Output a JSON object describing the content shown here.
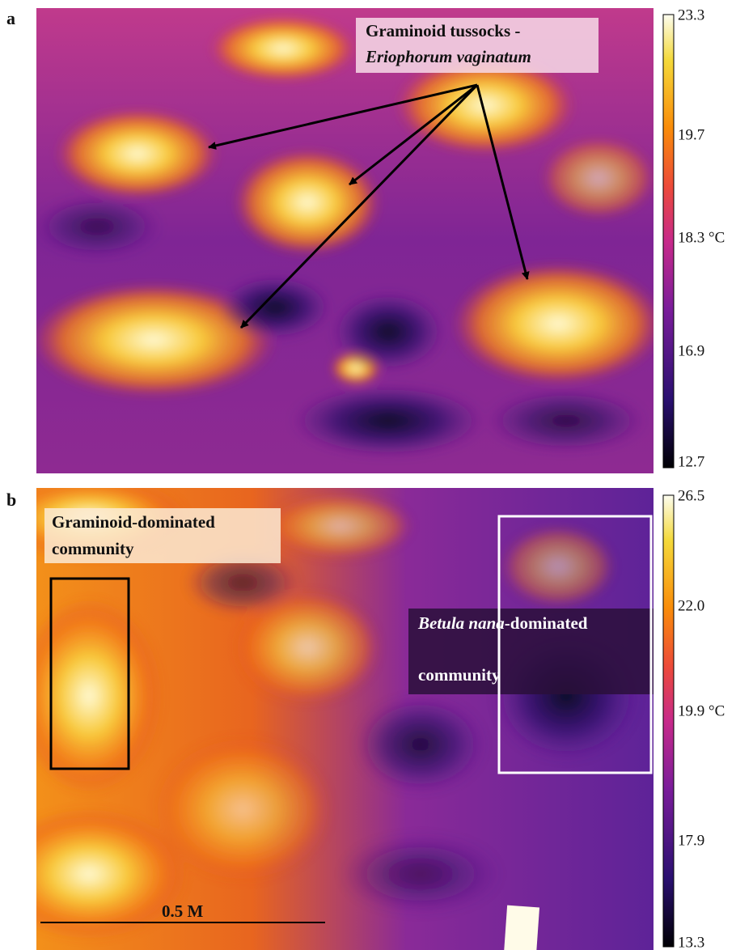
{
  "panels": [
    {
      "label": "a",
      "annotation": {
        "line1": "Graminoid tussocks -",
        "line2": "Eriophorum vaginatum"
      },
      "colorbar": {
        "ticks": [
          "23.3",
          "19.7",
          "18.3 °C",
          "16.9",
          "12.7"
        ]
      }
    },
    {
      "label": "b",
      "annotations": [
        {
          "line1": "Graminoid-dominated",
          "line2": "community"
        },
        {
          "line1_italic": "Betula nana",
          "line1_rest": "-dominated",
          "line2": "community"
        }
      ],
      "scale_bar": "0.5 M",
      "colorbar": {
        "ticks": [
          "26.5",
          "22.0",
          "19.9 °C",
          "17.9",
          "13.3"
        ]
      }
    }
  ]
}
